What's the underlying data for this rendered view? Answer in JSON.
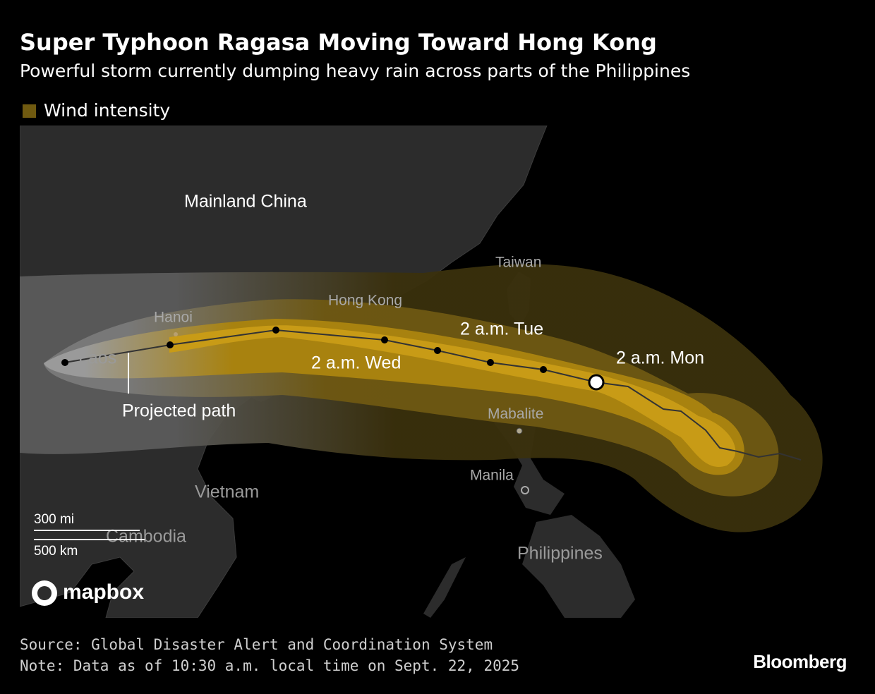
{
  "header": {
    "title": "Super Typhoon Ragasa Moving Toward Hong Kong",
    "subtitle": "Powerful storm currently dumping heavy rain across parts of the Philippines"
  },
  "legend": {
    "label": "Wind intensity"
  },
  "map": {
    "labels": [
      "Mainland China",
      "Taiwan",
      "Hong Kong",
      "Hanoi",
      "Laos",
      "2 a.m. Tue",
      "2 a.m. Wed",
      "2 a.m. Mon",
      "Projected path",
      "Mabalite",
      "Manila",
      "Vietnam",
      "Cambodia",
      "Philippines"
    ],
    "scale": {
      "miles": "300 mi",
      "km": "500 km"
    },
    "attribution": "mapbox"
  },
  "footer": {
    "source": "Source: Global Disaster Alert and Coordination System",
    "note": "Note: Data as of 10:30 a.m. local time on Sept. 22, 2025",
    "brand": "Bloomberg"
  }
}
